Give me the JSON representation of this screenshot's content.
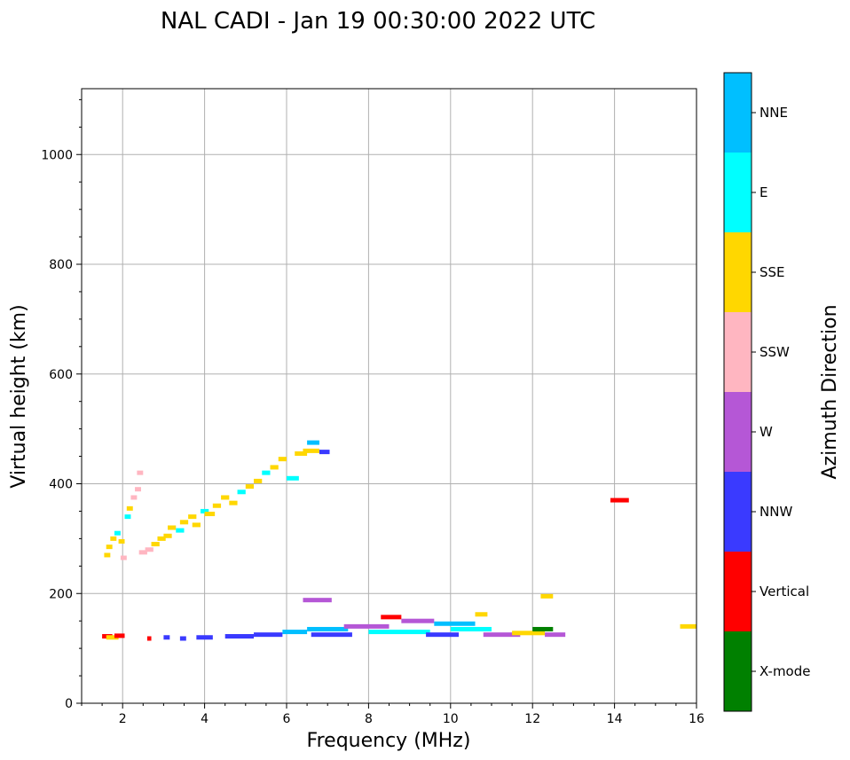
{
  "chart_data": {
    "type": "scatter",
    "title": "NAL CADI - Jan 19 00:30:00 2022 UTC",
    "xlabel": "Frequency (MHz)",
    "ylabel": "Virtual height (km)",
    "xlim": [
      1,
      16
    ],
    "ylim": [
      0,
      1120
    ],
    "xticks": [
      2,
      4,
      6,
      8,
      10,
      12,
      14,
      16
    ],
    "yticks": [
      0,
      200,
      400,
      600,
      800,
      1000
    ],
    "grid": true,
    "colorbar": {
      "label": "Azimuth Direction",
      "categories": [
        {
          "name": "X-mode",
          "color": "#008000"
        },
        {
          "name": "Vertical",
          "color": "#ff0000"
        },
        {
          "name": "NNW",
          "color": "#3a3aff"
        },
        {
          "name": "W",
          "color": "#b557d6"
        },
        {
          "name": "SSW",
          "color": "#ffb6c1"
        },
        {
          "name": "SSE",
          "color": "#ffd700"
        },
        {
          "name": "E",
          "color": "#00ffff"
        },
        {
          "name": "NNE",
          "color": "#00bfff"
        }
      ]
    },
    "segments": [
      {
        "f0": 1.55,
        "f1": 1.7,
        "h": 270,
        "dir": "SSE"
      },
      {
        "f0": 1.6,
        "f1": 1.75,
        "h": 285,
        "dir": "SSE"
      },
      {
        "f0": 1.7,
        "f1": 1.85,
        "h": 300,
        "dir": "SSE"
      },
      {
        "f0": 1.8,
        "f1": 1.95,
        "h": 310,
        "dir": "E"
      },
      {
        "f0": 1.9,
        "f1": 2.05,
        "h": 295,
        "dir": "SSE"
      },
      {
        "f0": 1.95,
        "f1": 2.1,
        "h": 265,
        "dir": "SSW"
      },
      {
        "f0": 2.05,
        "f1": 2.2,
        "h": 340,
        "dir": "E"
      },
      {
        "f0": 2.1,
        "f1": 2.25,
        "h": 355,
        "dir": "SSE"
      },
      {
        "f0": 2.2,
        "f1": 2.35,
        "h": 375,
        "dir": "SSW"
      },
      {
        "f0": 2.3,
        "f1": 2.45,
        "h": 390,
        "dir": "SSW"
      },
      {
        "f0": 2.35,
        "f1": 2.5,
        "h": 420,
        "dir": "SSW"
      },
      {
        "f0": 2.4,
        "f1": 2.6,
        "h": 275,
        "dir": "SSW"
      },
      {
        "f0": 2.55,
        "f1": 2.75,
        "h": 280,
        "dir": "SSW"
      },
      {
        "f0": 2.7,
        "f1": 2.9,
        "h": 290,
        "dir": "SSE"
      },
      {
        "f0": 2.85,
        "f1": 3.05,
        "h": 300,
        "dir": "SSE"
      },
      {
        "f0": 3.0,
        "f1": 3.2,
        "h": 305,
        "dir": "SSE"
      },
      {
        "f0": 3.1,
        "f1": 3.3,
        "h": 320,
        "dir": "SSE"
      },
      {
        "f0": 3.3,
        "f1": 3.5,
        "h": 315,
        "dir": "E"
      },
      {
        "f0": 3.4,
        "f1": 3.6,
        "h": 330,
        "dir": "SSE"
      },
      {
        "f0": 3.6,
        "f1": 3.8,
        "h": 340,
        "dir": "SSE"
      },
      {
        "f0": 3.7,
        "f1": 3.9,
        "h": 325,
        "dir": "SSE"
      },
      {
        "f0": 3.9,
        "f1": 4.1,
        "h": 350,
        "dir": "E"
      },
      {
        "f0": 4.0,
        "f1": 4.25,
        "h": 345,
        "dir": "SSE"
      },
      {
        "f0": 4.2,
        "f1": 4.4,
        "h": 360,
        "dir": "SSE"
      },
      {
        "f0": 4.4,
        "f1": 4.6,
        "h": 375,
        "dir": "SSE"
      },
      {
        "f0": 4.6,
        "f1": 4.8,
        "h": 365,
        "dir": "SSE"
      },
      {
        "f0": 4.8,
        "f1": 5.0,
        "h": 385,
        "dir": "E"
      },
      {
        "f0": 5.0,
        "f1": 5.2,
        "h": 395,
        "dir": "SSE"
      },
      {
        "f0": 5.2,
        "f1": 5.4,
        "h": 405,
        "dir": "SSE"
      },
      {
        "f0": 5.4,
        "f1": 5.6,
        "h": 420,
        "dir": "E"
      },
      {
        "f0": 5.6,
        "f1": 5.8,
        "h": 430,
        "dir": "SSE"
      },
      {
        "f0": 5.8,
        "f1": 6.0,
        "h": 445,
        "dir": "SSE"
      },
      {
        "f0": 6.0,
        "f1": 6.3,
        "h": 410,
        "dir": "E"
      },
      {
        "f0": 6.2,
        "f1": 6.5,
        "h": 455,
        "dir": "SSE"
      },
      {
        "f0": 6.4,
        "f1": 6.8,
        "h": 460,
        "dir": "SSE"
      },
      {
        "f0": 6.5,
        "f1": 6.8,
        "h": 475,
        "dir": "NNE"
      },
      {
        "f0": 6.8,
        "f1": 7.05,
        "h": 458,
        "dir": "NNW"
      },
      {
        "f0": 1.5,
        "f1": 1.75,
        "h": 122,
        "dir": "Vertical"
      },
      {
        "f0": 1.6,
        "f1": 1.9,
        "h": 120,
        "dir": "SSE"
      },
      {
        "f0": 1.8,
        "f1": 2.05,
        "h": 123,
        "dir": "Vertical"
      },
      {
        "f0": 2.6,
        "f1": 2.7,
        "h": 118,
        "dir": "Vertical"
      },
      {
        "f0": 3.0,
        "f1": 3.15,
        "h": 120,
        "dir": "NNW"
      },
      {
        "f0": 3.4,
        "f1": 3.55,
        "h": 118,
        "dir": "NNW"
      },
      {
        "f0": 3.8,
        "f1": 4.2,
        "h": 120,
        "dir": "NNW"
      },
      {
        "f0": 4.5,
        "f1": 5.2,
        "h": 122,
        "dir": "NNW"
      },
      {
        "f0": 5.2,
        "f1": 5.9,
        "h": 125,
        "dir": "NNW"
      },
      {
        "f0": 5.9,
        "f1": 6.5,
        "h": 130,
        "dir": "NNE"
      },
      {
        "f0": 6.5,
        "f1": 7.5,
        "h": 135,
        "dir": "NNE"
      },
      {
        "f0": 6.6,
        "f1": 7.6,
        "h": 125,
        "dir": "NNW"
      },
      {
        "f0": 7.4,
        "f1": 8.5,
        "h": 140,
        "dir": "W"
      },
      {
        "f0": 8.0,
        "f1": 9.5,
        "h": 130,
        "dir": "E"
      },
      {
        "f0": 8.3,
        "f1": 8.8,
        "h": 157,
        "dir": "Vertical"
      },
      {
        "f0": 8.8,
        "f1": 9.6,
        "h": 150,
        "dir": "W"
      },
      {
        "f0": 9.4,
        "f1": 10.2,
        "h": 125,
        "dir": "NNW"
      },
      {
        "f0": 9.6,
        "f1": 10.6,
        "h": 145,
        "dir": "NNE"
      },
      {
        "f0": 10.0,
        "f1": 11.0,
        "h": 135,
        "dir": "E"
      },
      {
        "f0": 10.6,
        "f1": 10.9,
        "h": 162,
        "dir": "SSE"
      },
      {
        "f0": 10.8,
        "f1": 11.7,
        "h": 125,
        "dir": "W"
      },
      {
        "f0": 11.5,
        "f1": 12.3,
        "h": 128,
        "dir": "SSE"
      },
      {
        "f0": 12.0,
        "f1": 12.5,
        "h": 135,
        "dir": "X-mode"
      },
      {
        "f0": 12.3,
        "f1": 12.8,
        "h": 125,
        "dir": "W"
      },
      {
        "f0": 6.4,
        "f1": 7.1,
        "h": 188,
        "dir": "W"
      },
      {
        "f0": 12.2,
        "f1": 12.5,
        "h": 195,
        "dir": "SSE"
      },
      {
        "f0": 13.9,
        "f1": 14.35,
        "h": 370,
        "dir": "Vertical"
      },
      {
        "f0": 15.6,
        "f1": 16.0,
        "h": 140,
        "dir": "SSE"
      }
    ]
  }
}
